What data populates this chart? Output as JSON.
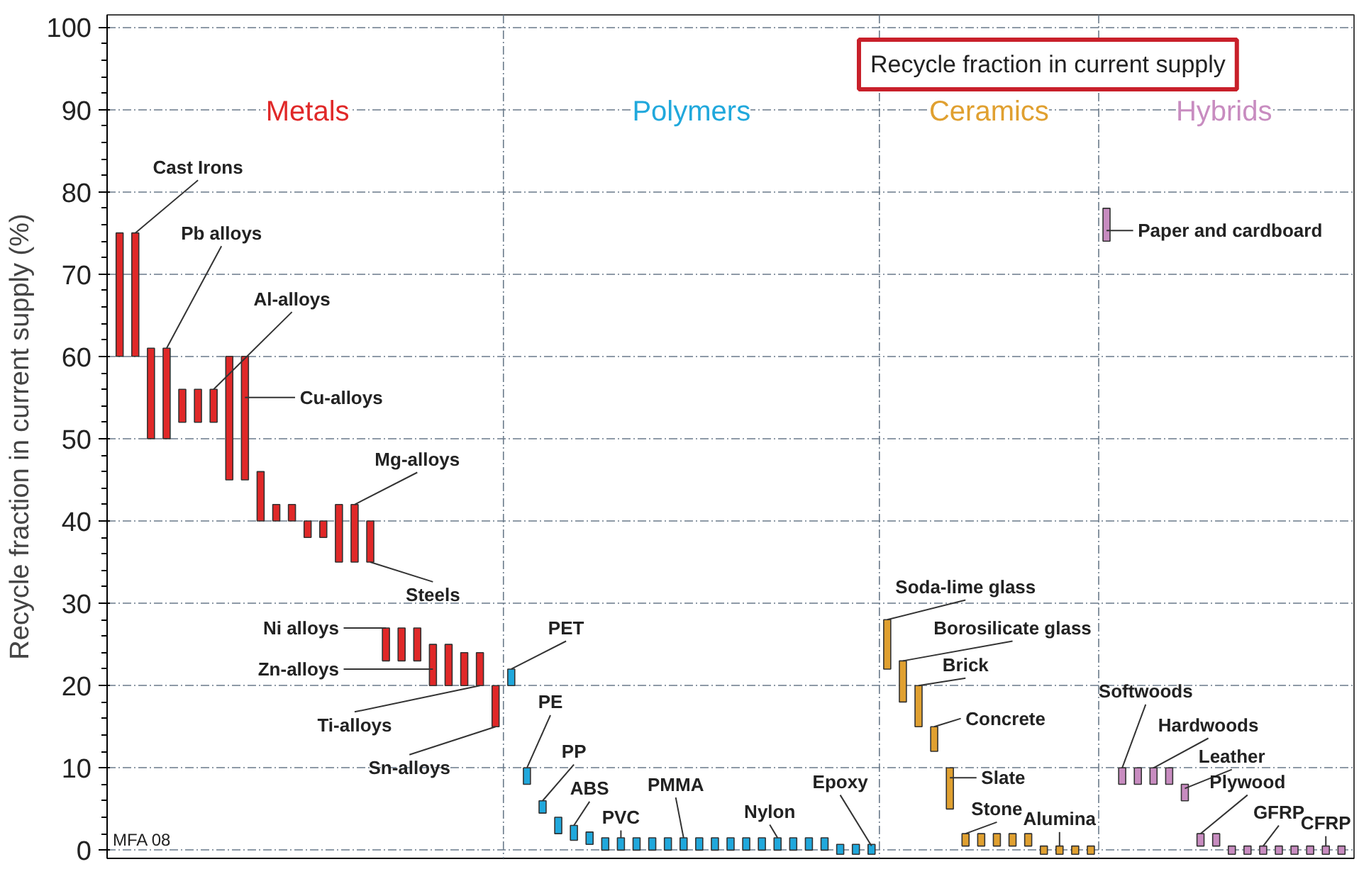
{
  "chart_data": {
    "type": "bar",
    "title": "Recycle fraction in current supply",
    "ylabel": "Recycle fraction in current supply (%)",
    "categories": [
      null,
      null,
      null,
      null,
      null,
      null,
      null,
      null,
      null,
      null,
      null,
      null,
      null,
      null,
      null,
      null,
      null,
      null,
      null,
      null,
      null,
      null,
      null,
      null,
      null,
      null,
      null,
      null,
      null,
      null,
      null,
      null,
      null,
      null,
      null,
      null,
      null,
      null,
      null,
      null,
      null,
      null,
      null,
      null,
      null,
      null,
      null,
      null,
      null,
      null,
      null,
      null,
      null,
      null,
      null,
      null,
      null,
      null,
      null,
      null,
      null,
      null,
      null,
      null,
      null,
      null,
      null,
      null,
      null,
      null,
      null,
      null,
      null,
      null,
      null,
      null,
      null,
      null,
      null
    ],
    "series": [
      {
        "name": "Metals",
        "color": "#e02828",
        "base": [
          60,
          60,
          50,
          50,
          52,
          52,
          52,
          45,
          45,
          40,
          40,
          40,
          38,
          38,
          35,
          35,
          35,
          23,
          23,
          23,
          20,
          20,
          20,
          20,
          15,
          null,
          null,
          null,
          null,
          null,
          null,
          null,
          null,
          null,
          null,
          null,
          null,
          null,
          null,
          null,
          null,
          null,
          null,
          null,
          null,
          null,
          null,
          null,
          null,
          null,
          null,
          null,
          null,
          null,
          null,
          null,
          null,
          null,
          null,
          null,
          null,
          null,
          null,
          null,
          null,
          null,
          null,
          null,
          null,
          null,
          null,
          null,
          null,
          null,
          null,
          null,
          null,
          null,
          null
        ],
        "values": [
          15,
          15,
          11,
          11,
          4,
          4,
          4,
          15,
          15,
          6,
          2,
          2,
          2,
          2,
          7,
          7,
          5,
          4,
          4,
          4,
          5,
          5,
          4,
          4,
          5,
          null,
          null,
          null,
          null,
          null,
          null,
          null,
          null,
          null,
          null,
          null,
          null,
          null,
          null,
          null,
          null,
          null,
          null,
          null,
          null,
          null,
          null,
          null,
          null,
          null,
          null,
          null,
          null,
          null,
          null,
          null,
          null,
          null,
          null,
          null,
          null,
          null,
          null,
          null,
          null,
          null,
          null,
          null,
          null,
          null,
          null,
          null,
          null,
          null,
          null,
          null,
          null,
          null,
          null
        ]
      },
      {
        "name": "Polymers",
        "color": "#20a8dc",
        "base": [
          null,
          null,
          null,
          null,
          null,
          null,
          null,
          null,
          null,
          null,
          null,
          null,
          null,
          null,
          null,
          null,
          null,
          null,
          null,
          null,
          null,
          null,
          null,
          null,
          null,
          20,
          8,
          4.5,
          2,
          1.2,
          0.7,
          0,
          0,
          0,
          0,
          0,
          0,
          0,
          0,
          0,
          0,
          0,
          0,
          0,
          0,
          0,
          -0.5,
          -0.5,
          -0.5,
          null,
          null,
          null,
          null,
          null,
          null,
          null,
          null,
          null,
          null,
          null,
          null,
          null,
          null,
          null,
          null,
          null,
          null,
          null,
          null,
          null,
          null,
          null,
          null,
          null,
          null,
          null,
          null,
          null,
          null
        ],
        "values": [
          null,
          null,
          null,
          null,
          null,
          null,
          null,
          null,
          null,
          null,
          null,
          null,
          null,
          null,
          null,
          null,
          null,
          null,
          null,
          null,
          null,
          null,
          null,
          null,
          null,
          2,
          2,
          1.5,
          2,
          1.8,
          1.5,
          1.5,
          1.5,
          1.5,
          1.5,
          1.5,
          1.5,
          1.5,
          1.5,
          1.5,
          1.5,
          1.5,
          1.5,
          1.5,
          1.5,
          1.5,
          1.2,
          1.2,
          1.2,
          null,
          null,
          null,
          null,
          null,
          null,
          null,
          null,
          null,
          null,
          null,
          null,
          null,
          null,
          null,
          null,
          null,
          null,
          null,
          null,
          null,
          null,
          null,
          null,
          null,
          null,
          null,
          null,
          null,
          null
        ]
      },
      {
        "name": "Ceramics",
        "color": "#e0a030",
        "base": [
          null,
          null,
          null,
          null,
          null,
          null,
          null,
          null,
          null,
          null,
          null,
          null,
          null,
          null,
          null,
          null,
          null,
          null,
          null,
          null,
          null,
          null,
          null,
          null,
          null,
          null,
          null,
          null,
          null,
          null,
          null,
          null,
          null,
          null,
          null,
          null,
          null,
          null,
          null,
          null,
          null,
          null,
          null,
          null,
          null,
          null,
          null,
          null,
          null,
          22,
          18,
          15,
          12,
          5,
          0.5,
          0.5,
          0.5,
          0.5,
          0.5,
          -0.5,
          -0.5,
          -0.5,
          -0.5,
          null,
          null,
          null,
          null,
          null,
          null,
          null,
          null,
          null,
          null,
          null,
          null,
          null,
          null,
          null,
          null
        ],
        "values": [
          null,
          null,
          null,
          null,
          null,
          null,
          null,
          null,
          null,
          null,
          null,
          null,
          null,
          null,
          null,
          null,
          null,
          null,
          null,
          null,
          null,
          null,
          null,
          null,
          null,
          null,
          null,
          null,
          null,
          null,
          null,
          null,
          null,
          null,
          null,
          null,
          null,
          null,
          null,
          null,
          null,
          null,
          null,
          null,
          null,
          null,
          null,
          null,
          null,
          6,
          5,
          5,
          3,
          5,
          1.5,
          1.5,
          1.5,
          1.5,
          1.5,
          1,
          1,
          1,
          1,
          null,
          null,
          null,
          null,
          null,
          null,
          null,
          null,
          null,
          null,
          null,
          null,
          null,
          null,
          null,
          null
        ]
      },
      {
        "name": "Hybrids",
        "color": "#c88cc0",
        "base": [
          null,
          null,
          null,
          null,
          null,
          null,
          null,
          null,
          null,
          null,
          null,
          null,
          null,
          null,
          null,
          null,
          null,
          null,
          null,
          null,
          null,
          null,
          null,
          null,
          null,
          null,
          null,
          null,
          null,
          null,
          null,
          null,
          null,
          null,
          null,
          null,
          null,
          null,
          null,
          null,
          null,
          null,
          null,
          null,
          null,
          null,
          null,
          null,
          null,
          null,
          null,
          null,
          null,
          null,
          null,
          null,
          null,
          null,
          null,
          null,
          null,
          null,
          null,
          74,
          8,
          8,
          8,
          8,
          6,
          0.5,
          0.5,
          -0.5,
          -0.5,
          -0.5,
          -0.5,
          -0.5,
          -0.5,
          -0.5,
          -0.5
        ],
        "values": [
          null,
          null,
          null,
          null,
          null,
          null,
          null,
          null,
          null,
          null,
          null,
          null,
          null,
          null,
          null,
          null,
          null,
          null,
          null,
          null,
          null,
          null,
          null,
          null,
          null,
          null,
          null,
          null,
          null,
          null,
          null,
          null,
          null,
          null,
          null,
          null,
          null,
          null,
          null,
          null,
          null,
          null,
          null,
          null,
          null,
          null,
          null,
          null,
          null,
          null,
          null,
          null,
          null,
          null,
          null,
          null,
          null,
          null,
          null,
          null,
          null,
          null,
          null,
          4,
          2,
          2,
          2,
          2,
          2,
          1.5,
          1.5,
          1,
          1,
          1,
          1,
          1,
          1,
          1,
          1
        ]
      }
    ],
    "ylim": [
      -1,
      101.5
    ],
    "yticks": [
      0,
      10,
      20,
      30,
      40,
      50,
      60,
      70,
      80,
      90,
      100
    ],
    "grid": true,
    "tick_labels": "y",
    "annotations": [
      "Cast Irons",
      "Pb alloys",
      "Al-alloys",
      "Cu-alloys",
      "Mg-alloys",
      "Steels",
      "Ni alloys",
      "Zn-alloys",
      "Ti-alloys",
      "Sn-alloys",
      "PET",
      "PE",
      "PP",
      "ABS",
      "PVC",
      "PMMA",
      "Nylon",
      "Epoxy",
      "Soda-lime glass",
      "Borosilicate glass",
      "Brick",
      "Concrete",
      "Slate",
      "Stone",
      "Alumina",
      "Paper and cardboard",
      "Softwoods",
      "Hardwoods",
      "Leather",
      "Plywood",
      "GFRP",
      "CFRP",
      "MFA 08"
    ]
  }
}
